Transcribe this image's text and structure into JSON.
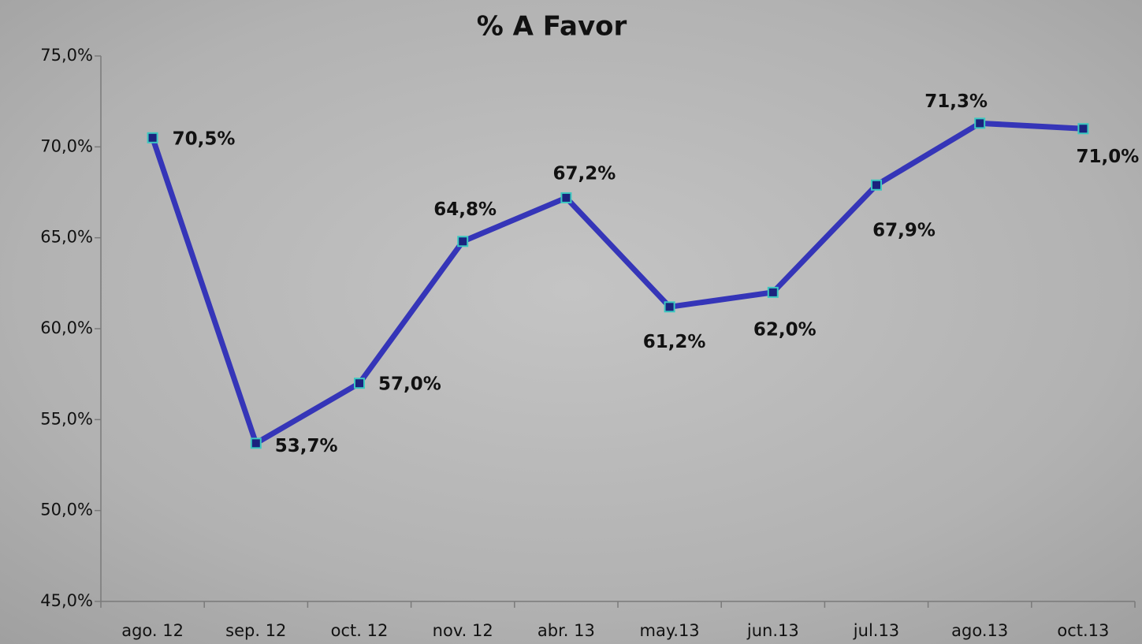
{
  "chart_data": {
    "type": "line",
    "title": "% A Favor",
    "categories": [
      "ago. 12",
      "sep. 12",
      "oct. 12",
      "nov. 12",
      "abr. 13",
      "may.13",
      "jun.13",
      "jul.13",
      "ago.13",
      "oct.13"
    ],
    "series": [
      {
        "name": "% A Favor",
        "color": "#3535b8",
        "values": [
          70.5,
          53.7,
          57.0,
          64.8,
          67.2,
          61.2,
          62.0,
          67.9,
          71.3,
          71.0
        ],
        "value_labels": [
          "70,5%",
          "53,7%",
          "57,0%",
          "64,8%",
          "67,2%",
          "61,2%",
          "62,0%",
          "67,9%",
          "71,3%",
          "71,0%"
        ]
      }
    ],
    "ylim": [
      45,
      75
    ],
    "yticks": [
      {
        "value": 45,
        "label": "45,0%"
      },
      {
        "value": 50,
        "label": "50,0%"
      },
      {
        "value": 55,
        "label": "55,0%"
      },
      {
        "value": 60,
        "label": "60,0%"
      },
      {
        "value": 65,
        "label": "65,0%"
      },
      {
        "value": 70,
        "label": "70,0%"
      },
      {
        "value": 75,
        "label": "75,0%"
      }
    ]
  }
}
